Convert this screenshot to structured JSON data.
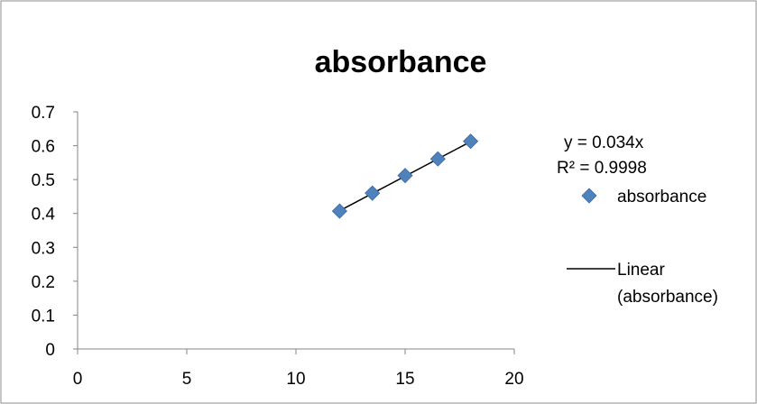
{
  "chart_data": {
    "type": "scatter",
    "title": "absorbance",
    "xlabel": "",
    "ylabel": "",
    "xlim": [
      0,
      20
    ],
    "ylim": [
      0,
      0.7
    ],
    "x_ticks": [
      "0",
      "5",
      "10",
      "15",
      "20"
    ],
    "y_ticks": [
      "0",
      "0.1",
      "0.2",
      "0.3",
      "0.4",
      "0.5",
      "0.6",
      "0.7"
    ],
    "grid": false,
    "legend_position": "right",
    "series": [
      {
        "name": "absorbance",
        "marker": "diamond",
        "color": "#4F81BD",
        "x": [
          12,
          13.5,
          15,
          16.5,
          18
        ],
        "y": [
          0.407,
          0.46,
          0.512,
          0.561,
          0.613
        ]
      }
    ],
    "trendline": {
      "type": "linear",
      "name": "Linear (absorbance)",
      "slope": 0.034,
      "intercept": 0,
      "x_range": [
        12,
        18
      ],
      "color": "#000000"
    },
    "annotations": {
      "equation": "y = 0.034x",
      "r_squared": "R² = 0.9998"
    },
    "legend": {
      "series_label": "absorbance",
      "trend_label_line1": "Linear",
      "trend_label_line2": "(absorbance)"
    }
  }
}
